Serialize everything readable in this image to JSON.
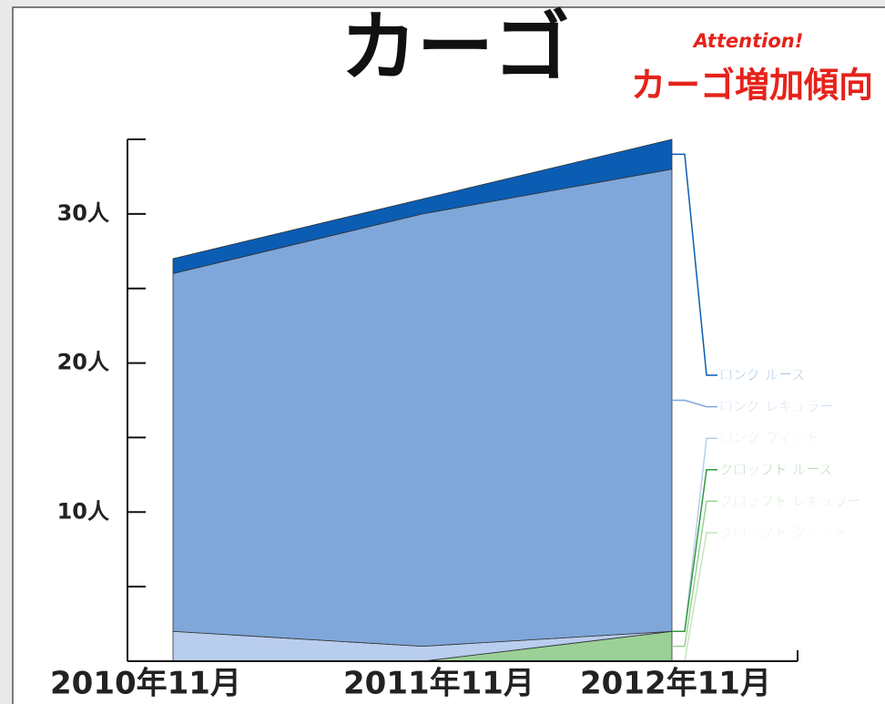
{
  "chart_data": {
    "type": "stacked_area",
    "title": "カーゴ",
    "annotation_small": "Attention!",
    "annotation": "カーゴ増加傾向",
    "categories": [
      "2010年11月",
      "2011年11月",
      "2012年11月"
    ],
    "series": [
      {
        "name": "ロング ルーズ",
        "color": "#0b5db3",
        "values": [
          1,
          1,
          2
        ]
      },
      {
        "name": "ロング レギュラー",
        "color": "#7fa7da",
        "values": [
          24,
          29,
          31
        ]
      },
      {
        "name": "ロング フィット",
        "color": "#b9cdee",
        "values": [
          2,
          1,
          0
        ]
      },
      {
        "name": "クロップド ルーズ",
        "color": "#2f9a3c",
        "values": [
          0,
          0,
          0
        ]
      },
      {
        "name": "クロップド レギュラー",
        "color": "#9bd196",
        "values": [
          0,
          0,
          2
        ]
      },
      {
        "name": "クロップド フィット",
        "color": "#c6e4bf",
        "values": [
          0,
          0,
          0
        ]
      }
    ],
    "ylim": [
      0,
      35
    ],
    "yticks": [
      {
        "value": 10,
        "label": "10人"
      },
      {
        "value": 20,
        "label": "20人"
      },
      {
        "value": 30,
        "label": "30人"
      }
    ],
    "minor_yticks": [
      5,
      15,
      25,
      35
    ]
  }
}
